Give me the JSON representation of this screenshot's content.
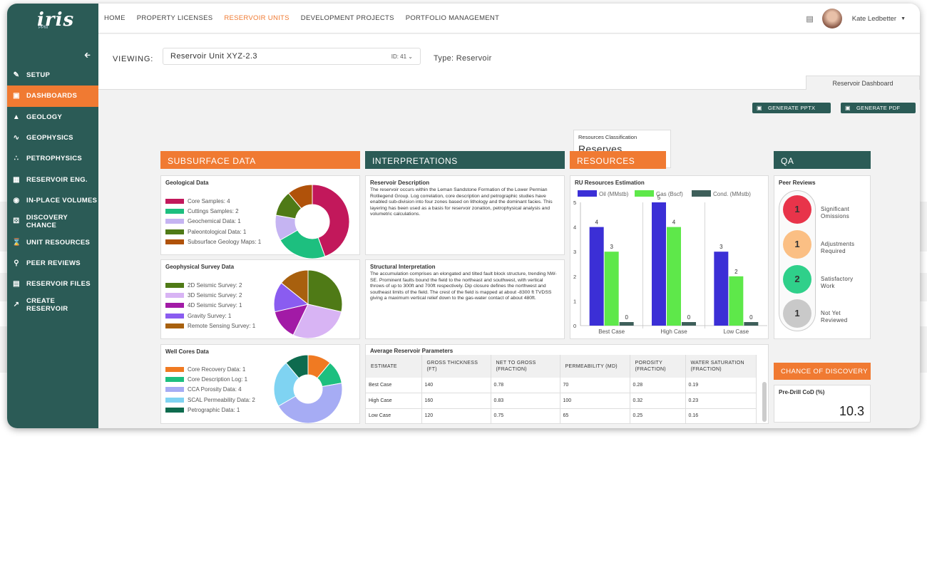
{
  "app": {
    "logo": "iris",
    "logo_sub": "PPM"
  },
  "sidebar": {
    "items": [
      {
        "label": "SETUP",
        "icon": "pencil-icon"
      },
      {
        "label": "DASHBOARDS",
        "icon": "dashboard-icon",
        "active": true
      },
      {
        "label": "GEOLOGY",
        "icon": "mountain-icon"
      },
      {
        "label": "GEOPHYSICS",
        "icon": "wave-icon"
      },
      {
        "label": "PETROPHYSICS",
        "icon": "molecule-icon"
      },
      {
        "label": "RESERVOIR ENG.",
        "icon": "calculator-icon"
      },
      {
        "label": "IN-PLACE VOLUMES",
        "icon": "drop-icon"
      },
      {
        "label": "DISCOVERY CHANCE",
        "icon": "dice-icon"
      },
      {
        "label": "UNIT RESOURCES",
        "icon": "hourglass-icon"
      },
      {
        "label": "PEER REVIEWS",
        "icon": "search-icon"
      },
      {
        "label": "RESERVOIR FILES",
        "icon": "file-icon"
      },
      {
        "label": "CREATE RESERVOIR",
        "icon": "external-icon"
      }
    ]
  },
  "topnav": {
    "items": [
      {
        "label": "HOME"
      },
      {
        "label": "PROPERTY LICENSES"
      },
      {
        "label": "RESERVOIR UNITS",
        "active": true
      },
      {
        "label": "DEVELOPMENT PROJECTS"
      },
      {
        "label": "PORTFOLIO MANAGEMENT"
      }
    ]
  },
  "user": {
    "name": "Kate Ledbetter"
  },
  "viewing": {
    "label": "VIEWING:",
    "value": "Reservoir Unit XYZ-2.3",
    "id": "ID: 41",
    "type": "Type: Reservoir"
  },
  "tab": {
    "label": "Reservoir Dashboard"
  },
  "buttons": {
    "pptx": "GENERATE PPTX",
    "pdf": "GENERATE PDF"
  },
  "sections": {
    "subsurface": "SUBSURFACE DATA",
    "interpretations": "INTERPRETATIONS",
    "resources": "RESOURCES",
    "qa": "QA"
  },
  "geological": {
    "title": "Geological Data",
    "items": [
      {
        "label": "Core Samples: 4",
        "value": 4,
        "color": "#c2185b"
      },
      {
        "label": "Cuttings Samples: 2",
        "value": 2,
        "color": "#1dbf7f"
      },
      {
        "label": "Geochemical Data: 1",
        "value": 1,
        "color": "#c5b4f2"
      },
      {
        "label": "Paleontological Data: 1",
        "value": 1,
        "color": "#4f7a16"
      },
      {
        "label": "Subsurface Geology Maps: 1",
        "value": 1,
        "color": "#b0520a"
      }
    ]
  },
  "geophysical": {
    "title": "Geophysical Survey Data",
    "items": [
      {
        "label": "2D Seismic Survey: 2",
        "value": 2,
        "color": "#4f7a16"
      },
      {
        "label": "3D Seismic Survey: 2",
        "value": 2,
        "color": "#d8b4f4"
      },
      {
        "label": "4D Seismic Survey: 1",
        "value": 1,
        "color": "#a21aa6"
      },
      {
        "label": "Gravity Survey: 1",
        "value": 1,
        "color": "#8a5cf0"
      },
      {
        "label": "Remote Sensing Survey: 1",
        "value": 1,
        "color": "#a8600e"
      }
    ]
  },
  "wellcores": {
    "title": "Well Cores Data",
    "items": [
      {
        "label": "Core Recovery Data: 1",
        "value": 1,
        "color": "#f07a22"
      },
      {
        "label": "Core Description Log: 1",
        "value": 1,
        "color": "#1dbf7f"
      },
      {
        "label": "CCA Porosity Data: 4",
        "value": 4,
        "color": "#a6acf4"
      },
      {
        "label": "SCAL Permeability Data: 2",
        "value": 2,
        "color": "#7fd3f2"
      },
      {
        "label": "Petrographic Data: 1",
        "value": 1,
        "color": "#0e6b4e"
      }
    ]
  },
  "reservoir_description": {
    "title": "Reservoir Description",
    "text": "The reservoir occurs within the Leman Sandstone Formation of the Lower Permian Rotliegend Group. Log correlation, core description and petrographic studies have enabled sub-division into four zones based on lithology and the dominant facies. This layering has been used as a basis for reservoir zonation, petrophysical analysis and volumetric calculations."
  },
  "structural_interpretation": {
    "title": "Structural Interpretation",
    "text": "The accumulation comprises an elongated and tilted fault block structure, trending NW-SE. Prominent faults bound the field to the northeast and southwest, with vertical throws of up to 300ft and 700ft respectively. Dip closure defines the northwest and southeast limits of the field. The crest of the field is mapped at about -8300 ft TVDSS giving a maximum vertical relief down to the gas-water contact of about 480ft."
  },
  "avg_params": {
    "title": "Average Reservoir Parameters",
    "headers": [
      "ESTIMATE",
      "GROSS THICKNESS (FT)",
      "NET TO GROSS (FRACTION)",
      "PERMEABILITY (MD)",
      "POROSITY (FRACTION)",
      "WATER SATURATION (FRACTION)"
    ],
    "rows": [
      [
        "Best Case",
        "140",
        "0.78",
        "70",
        "0.28",
        "0.19"
      ],
      [
        "High Case",
        "160",
        "0.83",
        "100",
        "0.32",
        "0.23"
      ],
      [
        "Low Case",
        "120",
        "0.75",
        "65",
        "0.25",
        "0.16"
      ]
    ]
  },
  "resources_classification": {
    "title": "Resources Classification",
    "value": "Reserves"
  },
  "chart_data": {
    "type": "bar",
    "title": "RU Resources Estimation",
    "categories": [
      "Best Case",
      "High Case",
      "Low Case"
    ],
    "series": [
      {
        "name": "Oil (MMstb)",
        "values": [
          4,
          5,
          3
        ],
        "color": "#3b2fd6"
      },
      {
        "name": "Gas (Bscf)",
        "values": [
          3,
          4,
          2
        ],
        "color": "#5ee84a"
      },
      {
        "name": "Cond. (MMstb)",
        "values": [
          0,
          0,
          0
        ],
        "color": "#3e5f5a"
      }
    ],
    "ylim": [
      0,
      5
    ],
    "yticks": [
      "0",
      "1",
      "2",
      "3",
      "4",
      "5"
    ],
    "legend": "top",
    "grid": false
  },
  "peer_reviews": {
    "title": "Peer Reviews",
    "items": [
      {
        "count": "1",
        "label": "Significant Omissions",
        "color": "#e8344a"
      },
      {
        "count": "1",
        "label": "Adjustments Required",
        "color": "#fbbf84"
      },
      {
        "count": "2",
        "label": "Satisfactory Work",
        "color": "#2fd08a"
      },
      {
        "count": "1",
        "label": "Not Yet Reviewed",
        "color": "#c9c9c9"
      }
    ]
  },
  "chance": {
    "header": "CHANCE OF DISCOVERY",
    "label": "Pre-Drill CoD (%)",
    "value": "10.3"
  }
}
